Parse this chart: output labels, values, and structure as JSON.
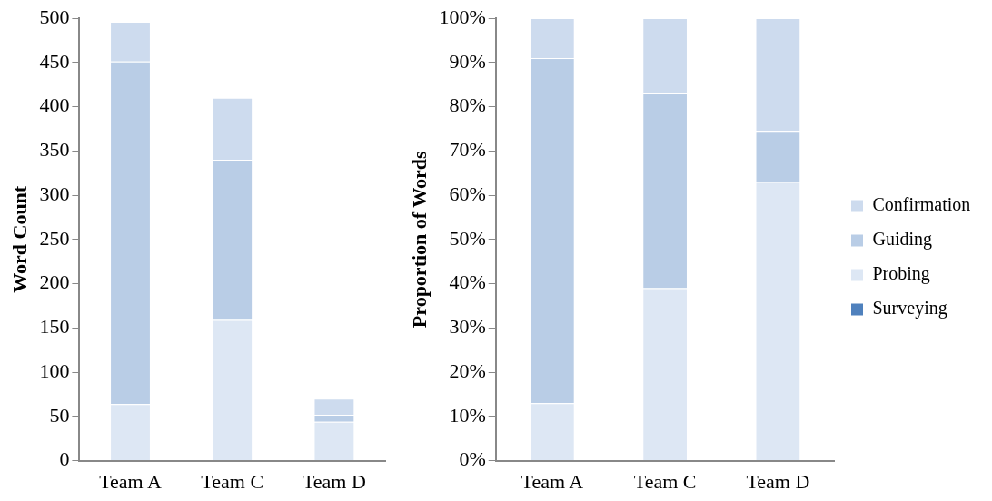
{
  "chart_data": [
    {
      "type": "bar",
      "stacked": true,
      "ylabel": "Word Count",
      "categories": [
        "Team A",
        "Team C",
        "Team D"
      ],
      "ylim": [
        0,
        500
      ],
      "yticks": [
        0,
        50,
        100,
        150,
        200,
        250,
        300,
        350,
        400,
        450,
        500
      ],
      "grid": false,
      "legend": false,
      "series": [
        {
          "color": "#4f81bd",
          "values": [
            0,
            0,
            0
          ]
        },
        {
          "color": "#dde7f4",
          "values": [
            64,
            159,
            44
          ]
        },
        {
          "color": "#b9cde6",
          "values": [
            387,
            181,
            8
          ]
        },
        {
          "color": "#cddbee",
          "values": [
            45,
            70,
            18
          ]
        }
      ]
    },
    {
      "type": "bar",
      "stacked": true,
      "ylabel": "Proportion of Words",
      "categories": [
        "Team A",
        "Team C",
        "Team D"
      ],
      "ylim": [
        0,
        100
      ],
      "yticks": [
        {
          "value": 0,
          "label": "0%"
        },
        {
          "value": 10,
          "label": "10%"
        },
        {
          "value": 20,
          "label": "20%"
        },
        {
          "value": 30,
          "label": "30%"
        },
        {
          "value": 40,
          "label": "40%"
        },
        {
          "value": 50,
          "label": "50%"
        },
        {
          "value": 60,
          "label": "60%"
        },
        {
          "value": 70,
          "label": "70%"
        },
        {
          "value": 80,
          "label": "80%"
        },
        {
          "value": 90,
          "label": "90%"
        },
        {
          "value": 100,
          "label": "100%"
        }
      ],
      "grid": false,
      "legend": "right",
      "series": [
        {
          "name": "Surveying",
          "color": "#4f81bd",
          "values": [
            0,
            0,
            0
          ]
        },
        {
          "name": "Probing",
          "color": "#dde7f4",
          "values": [
            13,
            39,
            63
          ]
        },
        {
          "name": "Guiding",
          "color": "#b9cde6",
          "values": [
            78,
            44,
            11.5
          ]
        },
        {
          "name": "Confirmation",
          "color": "#cddbee",
          "values": [
            9,
            17,
            25.5
          ]
        }
      ]
    }
  ]
}
